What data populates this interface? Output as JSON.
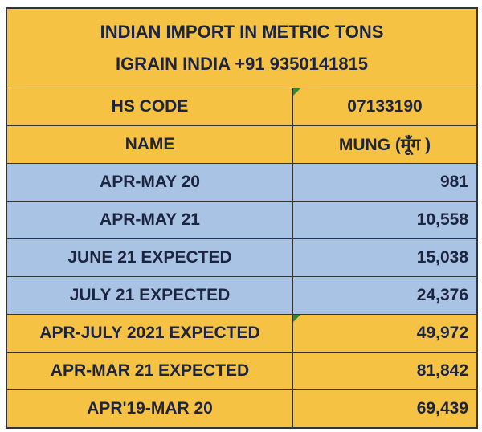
{
  "table": {
    "title_lines": [
      "INDIAN IMPORT IN METRIC TONS",
      "IGRAIN INDIA +91 9350141815"
    ],
    "header_rows": [
      [
        "HS CODE",
        "07133190"
      ],
      [
        "NAME",
        "MUNG (मूँग )"
      ]
    ],
    "rows": [
      [
        "APR-MAY 20",
        "981"
      ],
      [
        "APR-MAY 21",
        "10,558"
      ],
      [
        "JUNE 21 EXPECTED",
        "15,038"
      ],
      [
        "JULY 21 EXPECTED",
        "24,376"
      ],
      [
        "APR-JULY 2021 EXPECTED",
        "49,972"
      ],
      [
        "APR-MAR 21 EXPECTED",
        "81,842"
      ],
      [
        "APR'19-MAR 20",
        "69,439"
      ]
    ]
  }
}
